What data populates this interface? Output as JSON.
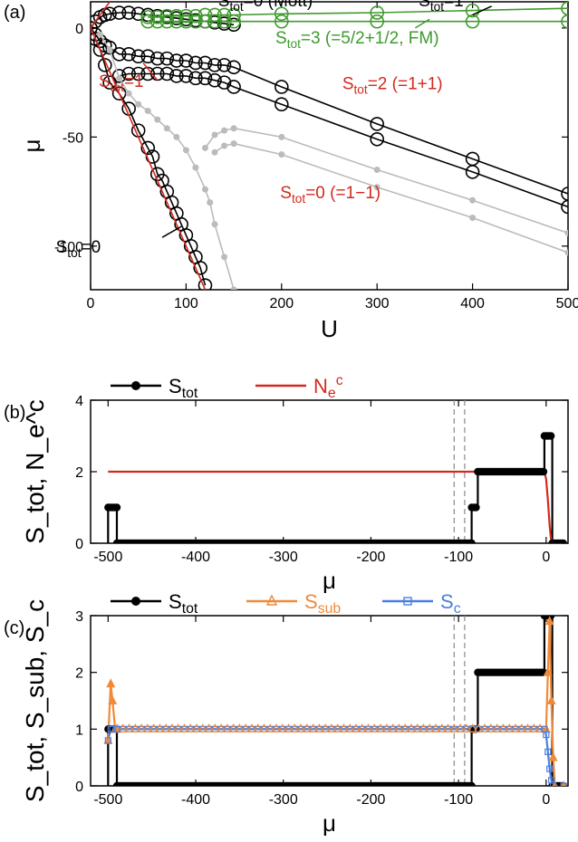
{
  "chart_data": [
    {
      "id": "a",
      "type": "line",
      "panel_label": "(a)",
      "xlabel": "U",
      "ylabel": "μ",
      "xlim": [
        0,
        500
      ],
      "ylim": [
        -120,
        12
      ],
      "xticks": [
        0,
        100,
        200,
        300,
        400,
        500
      ],
      "yticks": [
        0,
        -50,
        -100
      ],
      "tick_labels_x": [
        "0",
        "100",
        "200",
        "300",
        "400",
        "500"
      ],
      "tick_labels_y": [
        "0",
        "-50",
        "-100"
      ],
      "colors": {
        "black": "#000000",
        "green": "#3f9a2e",
        "gray": "#bbbbbb",
        "red": "#d42a1e"
      },
      "series": [
        {
          "name": "Stot=0 (Mott) upper",
          "color": "#000000",
          "marker": "circle-open",
          "x": [
            0,
            5,
            10,
            15,
            20,
            30,
            40,
            50,
            60,
            70,
            80,
            90,
            100,
            110,
            120,
            130,
            140,
            150
          ],
          "y": [
            0,
            3,
            5,
            6,
            6.5,
            7,
            7,
            6.5,
            6,
            5.5,
            5,
            4.5,
            4,
            3.5,
            3,
            2.5,
            2,
            1.5
          ]
        },
        {
          "name": "Stot=2 upper",
          "color": "#000000",
          "marker": "circle-open",
          "x": [
            0,
            5,
            10,
            15,
            20,
            30,
            40,
            50,
            60,
            70,
            80,
            90,
            100,
            110,
            120,
            130,
            140,
            150,
            200,
            300,
            400,
            500
          ],
          "y": [
            0,
            -3,
            -6,
            -8,
            -9,
            -12,
            -12,
            -13,
            -13,
            -14,
            -14,
            -15,
            -15,
            -16,
            -16,
            -17,
            -17,
            -18,
            -27,
            -44,
            -60,
            -76
          ]
        },
        {
          "name": "Stot=2 lower",
          "color": "#000000",
          "marker": "circle-open",
          "x": [
            30,
            40,
            50,
            60,
            70,
            80,
            90,
            100,
            110,
            120,
            130,
            140,
            150,
            200,
            300,
            400,
            500
          ],
          "y": [
            -22,
            -21,
            -21,
            -21,
            -21,
            -21,
            -22,
            -22,
            -23,
            -23,
            -24,
            -25,
            -27,
            -35,
            -51,
            -66,
            -82
          ]
        },
        {
          "name": "Stot=0 steep",
          "color": "#000000",
          "marker": "circle-open",
          "x": [
            5,
            10,
            15,
            20,
            30,
            40,
            50,
            60,
            65,
            70,
            75,
            80,
            85,
            90,
            95,
            100,
            105,
            110,
            115,
            120
          ],
          "y": [
            -5,
            -10,
            -17,
            -25,
            -30,
            -37,
            -47,
            -55,
            -59,
            -67,
            -70,
            -75,
            -80,
            -85,
            -90,
            -95,
            -100,
            -105,
            -110,
            -118
          ]
        },
        {
          "name": "Stot=3 FM upper",
          "color": "#3f9a2e",
          "marker": "circle-open",
          "x": [
            60,
            70,
            80,
            90,
            100,
            110,
            120,
            130,
            140,
            150,
            200,
            300,
            400,
            500
          ],
          "y": [
            5,
            5,
            5.5,
            5.5,
            5.5,
            5.5,
            6,
            6,
            6,
            6,
            6.5,
            7,
            8,
            9
          ]
        },
        {
          "name": "Stot=3 FM lower",
          "color": "#3f9a2e",
          "marker": "circle-open",
          "x": [
            60,
            70,
            80,
            90,
            100,
            110,
            120,
            130,
            140,
            150,
            200,
            300,
            400,
            500
          ],
          "y": [
            3,
            3,
            3,
            3,
            3,
            3,
            3,
            3,
            3,
            3,
            3,
            3,
            3,
            3
          ]
        },
        {
          "name": "Stot=0 (=1-1) upper",
          "color": "#bbbbbb",
          "marker": "dot",
          "x": [
            120,
            130,
            140,
            150,
            200,
            300,
            400,
            500
          ],
          "y": [
            -55,
            -49,
            -47,
            -46,
            -50,
            -65,
            -79,
            -94
          ]
        },
        {
          "name": "Stot=0 (=1-1) lower",
          "color": "#bbbbbb",
          "marker": "dot",
          "x": [
            130,
            140,
            150,
            200,
            300,
            400,
            500
          ],
          "y": [
            -57,
            -54,
            -53,
            -58,
            -73,
            -87,
            -103
          ]
        },
        {
          "name": "gray steep",
          "color": "#bbbbbb",
          "marker": "dot",
          "x": [
            10,
            20,
            30,
            40,
            50,
            60,
            70,
            80,
            90,
            100,
            110,
            120,
            125,
            130,
            140,
            150
          ],
          "y": [
            -3,
            -10,
            -23,
            -30,
            -35,
            -38,
            -42,
            -46,
            -50,
            -56,
            -64,
            -74,
            -80,
            -90,
            -105,
            -120
          ]
        },
        {
          "name": "red line",
          "color": "#d42a1e",
          "marker": "none",
          "x": [
            0,
            120
          ],
          "y": [
            0,
            -120
          ]
        },
        {
          "name": "red up",
          "color": "#d42a1e",
          "marker": "none",
          "x": [
            0,
            20
          ],
          "y": [
            0,
            12
          ]
        }
      ],
      "annotations": [
        {
          "text": "S",
          "sub": "tot",
          "rest": "=0 (Mott)",
          "color": "#000000",
          "at": [
            200,
            10
          ]
        },
        {
          "text": "S",
          "sub": "tot",
          "rest": "=1",
          "color": "#000000",
          "at": [
            410,
            10
          ]
        },
        {
          "text": "S",
          "sub": "tot",
          "rest": "=3 (=5/2+1/2, FM)",
          "color": "#3f9a2e",
          "at": [
            260,
            -7
          ]
        },
        {
          "text": "S",
          "sub": "tot",
          "rest": "=1",
          "color": "#d42a1e",
          "at": [
            75,
            -27
          ]
        },
        {
          "text": "S",
          "sub": "tot",
          "rest": "=2 (=1+1)",
          "color": "#d42a1e",
          "at": [
            330,
            -28
          ]
        },
        {
          "text": "S",
          "sub": "tot",
          "rest": "=0 (=1−1)",
          "color": "#d42a1e",
          "at": [
            265,
            -78
          ]
        },
        {
          "text": "S",
          "sub": "tot",
          "rest": "=0",
          "color": "#000000",
          "at": [
            30,
            -103
          ]
        }
      ]
    },
    {
      "id": "b",
      "type": "line",
      "panel_label": "(b)",
      "xlabel": "μ",
      "ylabel": "S_tot, N_e^c",
      "xlim": [
        -520,
        25
      ],
      "ylim": [
        0,
        4
      ],
      "xticks": [
        -500,
        -400,
        -300,
        -200,
        -100,
        0
      ],
      "tick_labels_x": [
        "-500",
        "-400",
        "-300",
        "-200",
        "-100",
        "0"
      ],
      "yticks": [
        0,
        2,
        4
      ],
      "tick_labels_y": [
        "0",
        "2",
        "4"
      ],
      "legend": [
        {
          "name": "S",
          "sub": "tot",
          "color": "#000000"
        },
        {
          "name": "N",
          "sub": "e",
          "sup": "c",
          "color": "#d42a1e"
        }
      ],
      "vlines": [
        -105,
        -93
      ],
      "series": [
        {
          "name": "Stot",
          "color": "#000000",
          "x": [
            -500,
            -500,
            -490,
            -490,
            -85,
            -85,
            -78,
            -78,
            -2,
            -2,
            7,
            7,
            20
          ],
          "y": [
            0,
            1,
            1,
            0,
            0,
            1,
            1,
            2,
            2,
            3,
            3,
            0,
            0
          ]
        },
        {
          "name": "Ne^c",
          "color": "#d42a1e",
          "x": [
            -500,
            -2,
            0,
            2,
            4,
            6
          ],
          "y": [
            2,
            2,
            1.8,
            1.2,
            0.5,
            0
          ]
        }
      ]
    },
    {
      "id": "c",
      "type": "line",
      "panel_label": "(c)",
      "xlabel": "μ",
      "ylabel": "S_tot, S_sub, S_c",
      "xlim": [
        -520,
        25
      ],
      "ylim": [
        0,
        3
      ],
      "xticks": [
        -500,
        -400,
        -300,
        -200,
        -100,
        0
      ],
      "tick_labels_x": [
        "-500",
        "-400",
        "-300",
        "-200",
        "-100",
        "0"
      ],
      "yticks": [
        0,
        1,
        2,
        3
      ],
      "tick_labels_y": [
        "0",
        "1",
        "2",
        "3"
      ],
      "legend": [
        {
          "name": "S",
          "sub": "tot",
          "color": "#000000"
        },
        {
          "name": "S",
          "sub": "sub",
          "color": "#f08a3a"
        },
        {
          "name": "S",
          "sub": "c",
          "color": "#4a7fe0"
        }
      ],
      "vlines": [
        -105,
        -93
      ],
      "series": [
        {
          "name": "Stot",
          "color": "#000000",
          "x": [
            -500,
            -500,
            -490,
            -490,
            -85,
            -85,
            -78,
            -78,
            -2,
            -2,
            7,
            7,
            20
          ],
          "y": [
            0,
            1,
            1,
            0,
            0,
            1,
            1,
            2,
            2,
            3,
            3,
            0,
            0
          ]
        },
        {
          "name": "Ssub",
          "color": "#f08a3a",
          "x": [
            -500,
            -497,
            -495,
            -492,
            -490,
            0,
            2,
            4,
            6,
            8,
            10,
            20
          ],
          "y": [
            0.8,
            1.8,
            1.5,
            1.0,
            1.0,
            1.0,
            2.0,
            2.9,
            1.5,
            0.5,
            0,
            0
          ]
        },
        {
          "name": "Sc",
          "color": "#4a7fe0",
          "x": [
            -500,
            -497,
            -495,
            -490,
            -2,
            0,
            2,
            4,
            6,
            8,
            20
          ],
          "y": [
            0.8,
            1.0,
            1.0,
            1.0,
            1.0,
            0.9,
            0.6,
            0.3,
            0.1,
            0.0,
            0.0
          ]
        }
      ]
    }
  ]
}
